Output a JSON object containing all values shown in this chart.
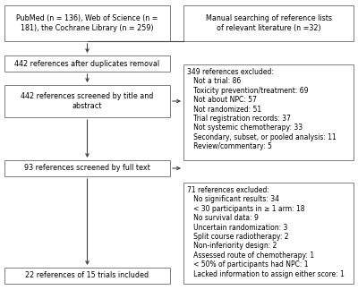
{
  "boxes": {
    "top_left": "PubMed (n = 136), Web of Science (n =\n181), the Cochrane Library (n = 259)",
    "top_right": "Manual searching of reference lists\nof relevant literature (n =32)",
    "dup_removal": "442 references after duplicates removal",
    "screened_title": "442 references screened by title and\nabstract",
    "excluded_349": "349 references excluded:\n   Not a trial: 86\n   Toxicity prevention/treatment: 69\n   Not about NPC: 57\n   Not randomized: 51\n   Trial registration records: 37\n   Not systemic chemotherapy: 33\n   Secondary, subset, or pooled analysis: 11\n   Review/commentary: 5",
    "screened_full": "93 references screened by full text",
    "excluded_71": "71 references excluded:\n   No significant results: 34\n   < 30 participants in ≥ 1 arm: 18\n   No survival data: 9\n   Uncertain randomization: 3\n   Split course radiotherapy: 2\n   Non-inferiority design: 2\n   Assessed route of chemotherapy: 1\n   < 50% of participants had NPC: 1\n   Lacked information to assign either score: 1",
    "included": "22 references of 15 trials included"
  },
  "bg_color": "#ffffff",
  "box_facecolor": "#ffffff",
  "box_edgecolor": "#808080",
  "fontsize": 5.8,
  "small_fontsize": 5.5,
  "arrow_color": "#404040"
}
